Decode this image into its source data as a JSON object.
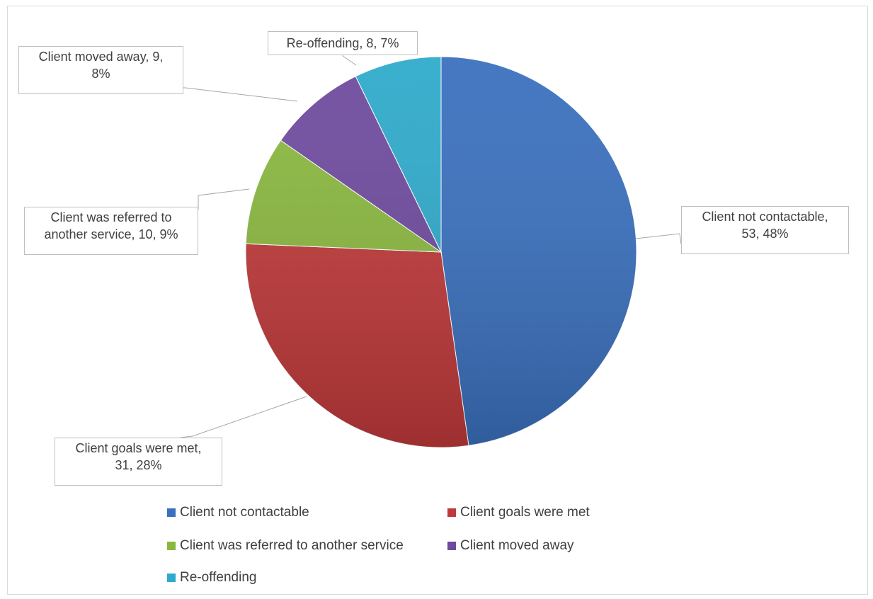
{
  "chart_data": {
    "type": "pie",
    "title": "",
    "slices": [
      {
        "label": "Client not contactable",
        "value": 53,
        "percent": "48%",
        "color": "#3a70be"
      },
      {
        "label": "Client goals were met",
        "value": 31,
        "percent": "28%",
        "color": "#c0393a"
      },
      {
        "label": "Client was referred to another service",
        "value": 10,
        "percent": "9%",
        "color": "#8ab83f"
      },
      {
        "label": "Client moved away",
        "value": 9,
        "percent": "8%",
        "color": "#6e4a9e"
      },
      {
        "label": "Re-offending",
        "value": 8,
        "percent": "7%",
        "color": "#2eaacb"
      }
    ],
    "data_labels": [
      {
        "line1": "Client not contactable,",
        "line2": "53, 48%"
      },
      {
        "line1": "Client goals were met,",
        "line2": "31, 28%"
      },
      {
        "line1": "Client was referred to",
        "line2": "another service, 10, 9%"
      },
      {
        "line1": "Client moved away, 9,",
        "line2": "8%"
      },
      {
        "line1": "Re-offending, 8, 7%",
        "line2": ""
      }
    ],
    "legend": {
      "placement": "bottom",
      "items": [
        "Client not contactable",
        "Client goals were met",
        "Client was referred to another service",
        "Client moved away",
        "Re-offending"
      ]
    }
  }
}
